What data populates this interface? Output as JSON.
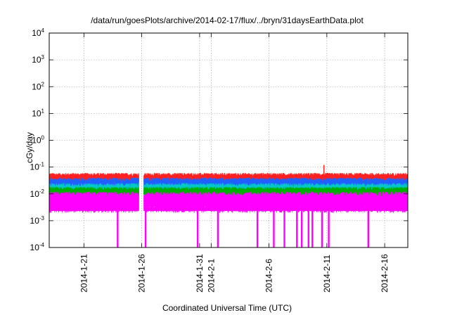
{
  "chart_data": {
    "type": "line",
    "title": "/data/run/goesPlots/archive/2014-02-17/flux/../bryn/31daysEarthData.plot",
    "xlabel": "Coordinated Universal Time (UTC)",
    "ylabel": "cGy/day",
    "y_scale": "log",
    "ylim": [
      0.0001,
      10000
    ],
    "xlim": [
      "2014-01-18",
      "2014-02-18"
    ],
    "grid": true,
    "y_ticks": [
      {
        "base": "10",
        "exp": "-4"
      },
      {
        "base": "10",
        "exp": "-3"
      },
      {
        "base": "10",
        "exp": "-2"
      },
      {
        "base": "10",
        "exp": "-1"
      },
      {
        "base": "10",
        "exp": "0"
      },
      {
        "base": "10",
        "exp": "1"
      },
      {
        "base": "10",
        "exp": "2"
      },
      {
        "base": "10",
        "exp": "3"
      },
      {
        "base": "10",
        "exp": "4"
      }
    ],
    "x_ticks": [
      {
        "date": "2014-01-21",
        "label": "2014-1-21"
      },
      {
        "date": "2014-01-26",
        "label": "2014-1-26"
      },
      {
        "date": "2014-01-31",
        "label": "2014-1-31"
      },
      {
        "date": "2014-02-01",
        "label": "2014-2-1"
      },
      {
        "date": "2014-02-06",
        "label": "2014-2-6"
      },
      {
        "date": "2014-02-11",
        "label": "2014-2-11"
      },
      {
        "date": "2014-02-16",
        "label": "2014-2-16"
      }
    ],
    "series": [
      {
        "color": "#ff2020",
        "typical": 0.04,
        "upper": 0.06,
        "lower": 0.028
      },
      {
        "color": "#2060ff",
        "typical": 0.025,
        "upper": 0.04,
        "lower": 0.015
      },
      {
        "color": "#00c8c8",
        "typical": 0.015,
        "upper": 0.025,
        "lower": 0.009
      },
      {
        "color": "#00b000",
        "typical": 0.012,
        "upper": 0.018,
        "lower": 0.008
      },
      {
        "color": "#ff00ff",
        "typical": 0.006,
        "upper": 0.012,
        "lower": 0.002
      }
    ],
    "data_gap": [
      "2014-01-25T18:00",
      "2014-01-26T04:00"
    ],
    "peak": {
      "date": "2014-02-10T18:00",
      "value": 0.12
    },
    "dropouts": [
      "2014-01-23T22:00",
      "2014-01-26T08:00",
      "2014-01-30T20:00",
      "2014-02-01T14:00",
      "2014-02-05T00:00",
      "2014-02-06T10:00",
      "2014-02-07T08:00",
      "2014-02-08T10:00",
      "2014-02-08T20:00",
      "2014-02-09T10:00",
      "2014-02-09T18:00",
      "2014-02-10T14:00",
      "2014-02-11T04:00",
      "2014-02-14T14:00"
    ]
  }
}
